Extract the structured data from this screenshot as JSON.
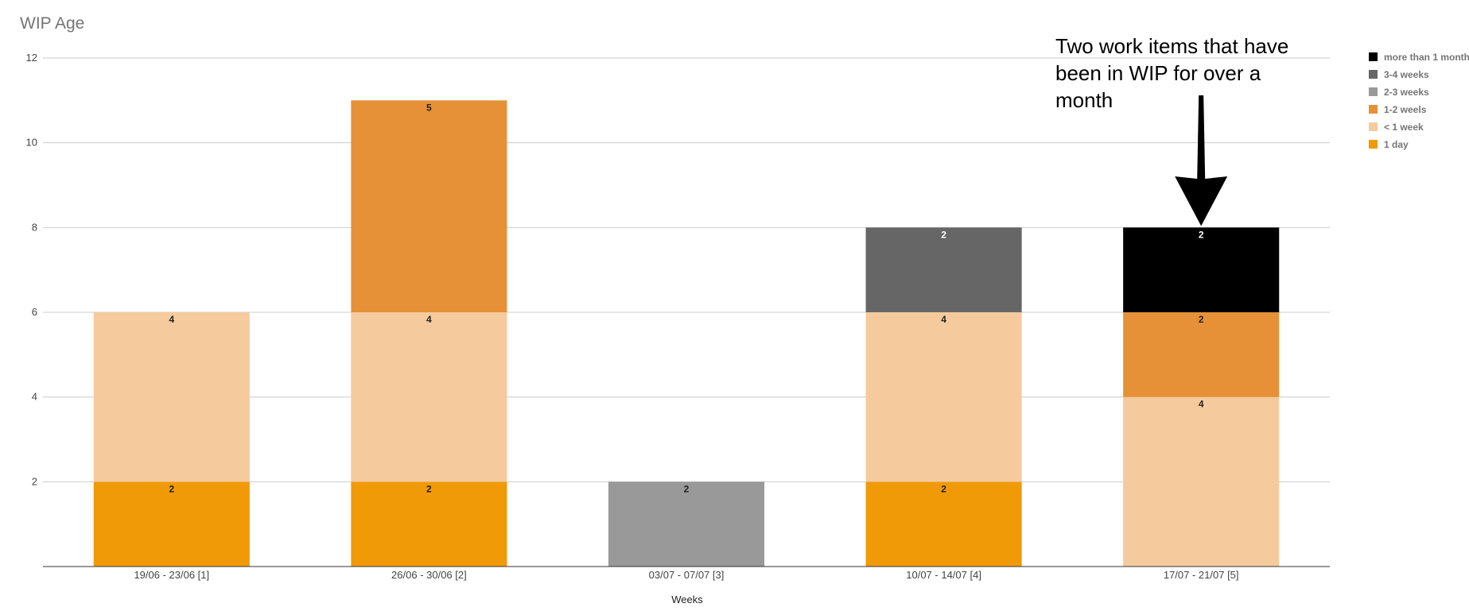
{
  "chart_data": {
    "type": "bar",
    "stacked": true,
    "title": "WIP Age",
    "xlabel": "Weeks",
    "ylabel": "",
    "ylim": [
      0,
      12
    ],
    "yticks": [
      2,
      4,
      6,
      8,
      10,
      12
    ],
    "grid": true,
    "legend_position": "right",
    "categories": [
      "19/06 - 23/06 [1]",
      "26/06 - 30/06 [2]",
      "03/07 - 07/07 [3]",
      "10/07 - 14/07 [4]",
      "17/07 - 21/07 [5]"
    ],
    "series": [
      {
        "name": "1 day",
        "color": "#F09A08",
        "label_color": "#222222",
        "values": [
          2,
          2,
          0,
          2,
          0
        ]
      },
      {
        "name": "< 1 week",
        "color": "#F5CB9D",
        "label_color": "#222222",
        "values": [
          4,
          4,
          0,
          4,
          4
        ]
      },
      {
        "name": "1-2 weels",
        "color": "#E69138",
        "label_color": "#222222",
        "values": [
          0,
          5,
          0,
          0,
          2
        ]
      },
      {
        "name": "2-3 weeks",
        "color": "#999999",
        "label_color": "#222222",
        "values": [
          0,
          0,
          2,
          0,
          0
        ]
      },
      {
        "name": "3-4 weeks",
        "color": "#666666",
        "label_color": "#ffffff",
        "values": [
          0,
          0,
          0,
          2,
          0
        ]
      },
      {
        "name": "more than 1 month",
        "color": "#000000",
        "label_color": "#ffffff",
        "values": [
          0,
          0,
          0,
          0,
          2
        ]
      }
    ],
    "annotations": [
      {
        "text_lines": [
          "Two work items that have",
          "been in WIP for over a",
          "month"
        ],
        "points_to_category": "17/07 - 21/07 [5]",
        "points_to_value": 8
      }
    ]
  }
}
